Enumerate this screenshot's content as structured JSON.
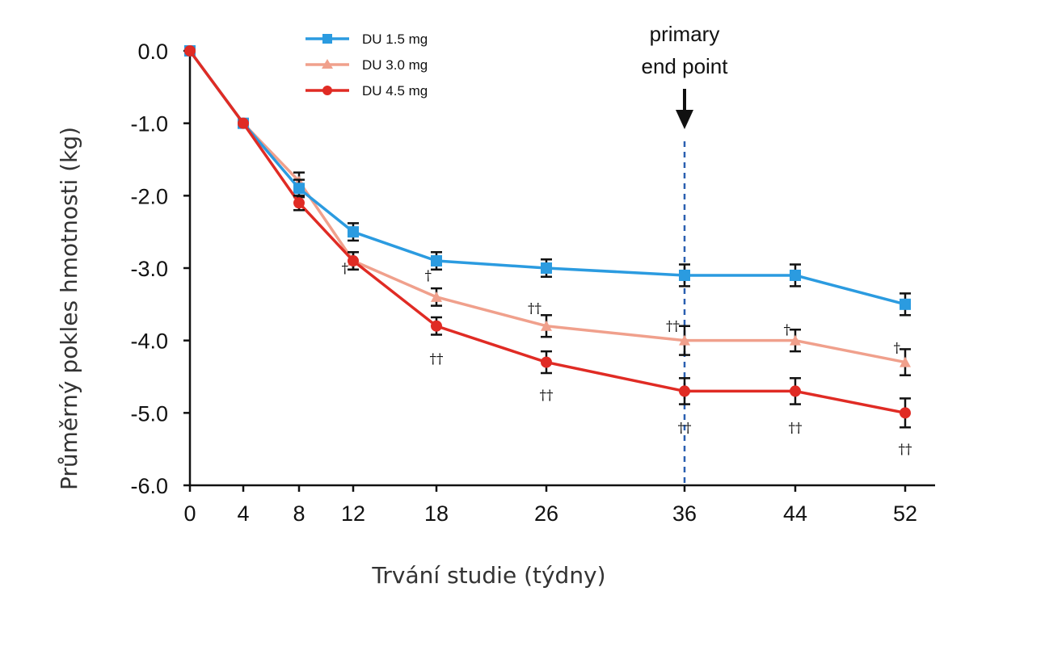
{
  "chart_data": {
    "type": "line",
    "xlabel": "Trvání studie (týdny)",
    "ylabel": "Průměrný pokles hmotnosti (kg)",
    "x": [
      0,
      4,
      8,
      12,
      18,
      26,
      36,
      44,
      52
    ],
    "x_tick_labels": [
      "0",
      "4",
      "8",
      "12",
      "18",
      "26",
      "36",
      "44",
      "52"
    ],
    "y_tick_labels": [
      "0.0",
      "-1.0",
      "-2.0",
      "-3.0",
      "-4.0",
      "-5.0",
      "-6.0"
    ],
    "ylim": [
      -6.0,
      0.0
    ],
    "x_scale": "categorical-equal-spacing-not-linear",
    "legend_position": "top-left",
    "series": [
      {
        "name": "DU 1.5 mg",
        "color": "#2b9be0",
        "marker": "square",
        "values": [
          0.0,
          -1.0,
          -1.9,
          -2.5,
          -2.9,
          -3.0,
          -3.1,
          -3.1,
          -3.5
        ],
        "error": [
          0,
          0,
          0.12,
          0.12,
          0.12,
          0.12,
          0.15,
          0.15,
          0.15
        ]
      },
      {
        "name": "DU 3.0 mg",
        "color": "#f0a08c",
        "marker": "triangle",
        "values": [
          0.0,
          -1.0,
          -1.8,
          -2.9,
          -3.4,
          -3.8,
          -4.0,
          -4.0,
          -4.3
        ],
        "error": [
          0,
          0,
          0.12,
          0.12,
          0.12,
          0.15,
          0.2,
          0.15,
          0.18
        ]
      },
      {
        "name": "DU 4.5 mg",
        "color": "#e02b24",
        "marker": "circle",
        "values": [
          0.0,
          -1.0,
          -2.1,
          -2.9,
          -3.8,
          -4.3,
          -4.7,
          -4.7,
          -5.0
        ],
        "error": [
          0,
          0,
          0.1,
          0.12,
          0.12,
          0.15,
          0.18,
          0.18,
          0.2
        ]
      }
    ],
    "annotation": {
      "text_line1": "primary",
      "text_line2": "end point",
      "x": 36
    },
    "significance_marks": [
      {
        "text": "†",
        "x": 12,
        "y": -3.0,
        "anchor": "left"
      },
      {
        "text": "†",
        "x": 18,
        "y": -3.1,
        "anchor": "left"
      },
      {
        "text": "††",
        "x": 18,
        "y": -4.25,
        "anchor": "center"
      },
      {
        "text": "††",
        "x": 26,
        "y": -3.55,
        "anchor": "left"
      },
      {
        "text": "††",
        "x": 26,
        "y": -4.75,
        "anchor": "center"
      },
      {
        "text": "††",
        "x": 36,
        "y": -3.8,
        "anchor": "left"
      },
      {
        "text": "††",
        "x": 36,
        "y": -5.2,
        "anchor": "center"
      },
      {
        "text": "†",
        "x": 44,
        "y": -3.85,
        "anchor": "left"
      },
      {
        "text": "††",
        "x": 44,
        "y": -5.2,
        "anchor": "center"
      },
      {
        "text": "†",
        "x": 52,
        "y": -4.1,
        "anchor": "left"
      },
      {
        "text": "††",
        "x": 52,
        "y": -5.5,
        "anchor": "center"
      }
    ]
  }
}
